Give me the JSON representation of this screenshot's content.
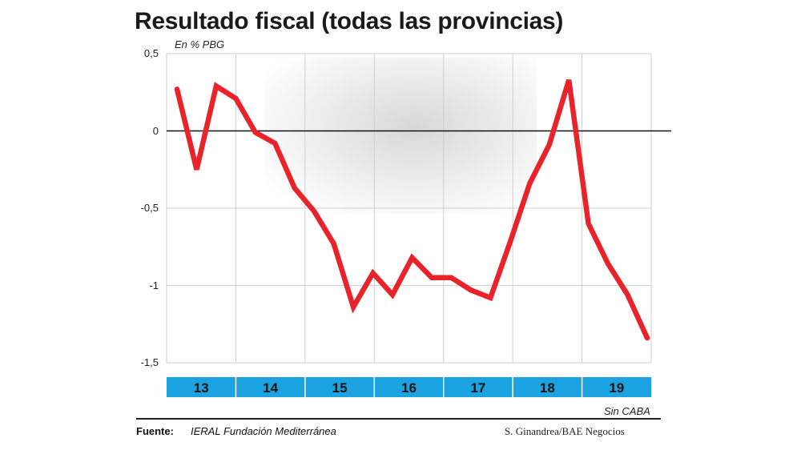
{
  "header": {
    "title": "Resultado fiscal (todas las provincias)",
    "unit_label": "En % PBG"
  },
  "footer": {
    "note": "Sin CABA",
    "source_label": "Fuente:",
    "source_text": "IERAL Fundación Mediterránea",
    "credit": "S. Ginandrea/BAE Negocios"
  },
  "colors": {
    "line": "#e8232a",
    "year_band": "#1aa3e0",
    "grid": "#cfcfcf",
    "zero_line": "#111111"
  },
  "chart_data": {
    "type": "line",
    "title": "Resultado fiscal (todas las provincias)",
    "ylabel": "En % PBG",
    "ylim": [
      -1.5,
      0.5
    ],
    "yticks": [
      0.5,
      0,
      -0.5,
      -1,
      -1.5
    ],
    "ytick_labels": [
      "0,5",
      "0",
      "-0,5",
      "-1",
      "-1,5"
    ],
    "year_groups": [
      "13",
      "14",
      "15",
      "16",
      "17",
      "18",
      "19"
    ],
    "quarters_per_year": 4,
    "series": [
      {
        "values": [
          0.27,
          -0.25,
          0.29,
          0.21,
          -0.01,
          -0.08,
          -0.37,
          -0.52,
          -0.73,
          -1.14,
          -0.92,
          -1.06,
          -0.82,
          -0.95,
          -0.95,
          -1.03,
          -1.08,
          -0.72,
          -0.34,
          -0.09,
          0.33,
          -0.6,
          -0.86,
          -1.06,
          -1.34
        ]
      }
    ],
    "grid": true
  }
}
